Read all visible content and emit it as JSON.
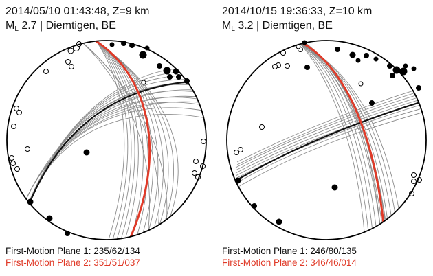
{
  "panels": [
    {
      "event": "2014/05/10 01:43:48, Z=9 km",
      "magnitude_prefix": "M",
      "magnitude_sub": "L",
      "magnitude_rest": " 2.7 | Diemtigen, BE",
      "plane1_label": "First-Motion Plane 1: 235/62/134",
      "plane2_label": "First-Motion Plane 2: 351/51/037"
    },
    {
      "event": "2014/10/15 19:36:33, Z=10 km",
      "magnitude_prefix": "M",
      "magnitude_sub": "L",
      "magnitude_rest": " 3.2 | Diemtigen, BE",
      "plane1_label": "First-Motion Plane 1: 246/80/135",
      "plane2_label": "First-Motion Plane 2: 346/46/014"
    }
  ],
  "colors": {
    "plane1": "#111111",
    "plane2": "#e03a28",
    "uncertainty": "#8c8c8c",
    "compression": "#000000",
    "dilatation": "#ffffff"
  }
}
